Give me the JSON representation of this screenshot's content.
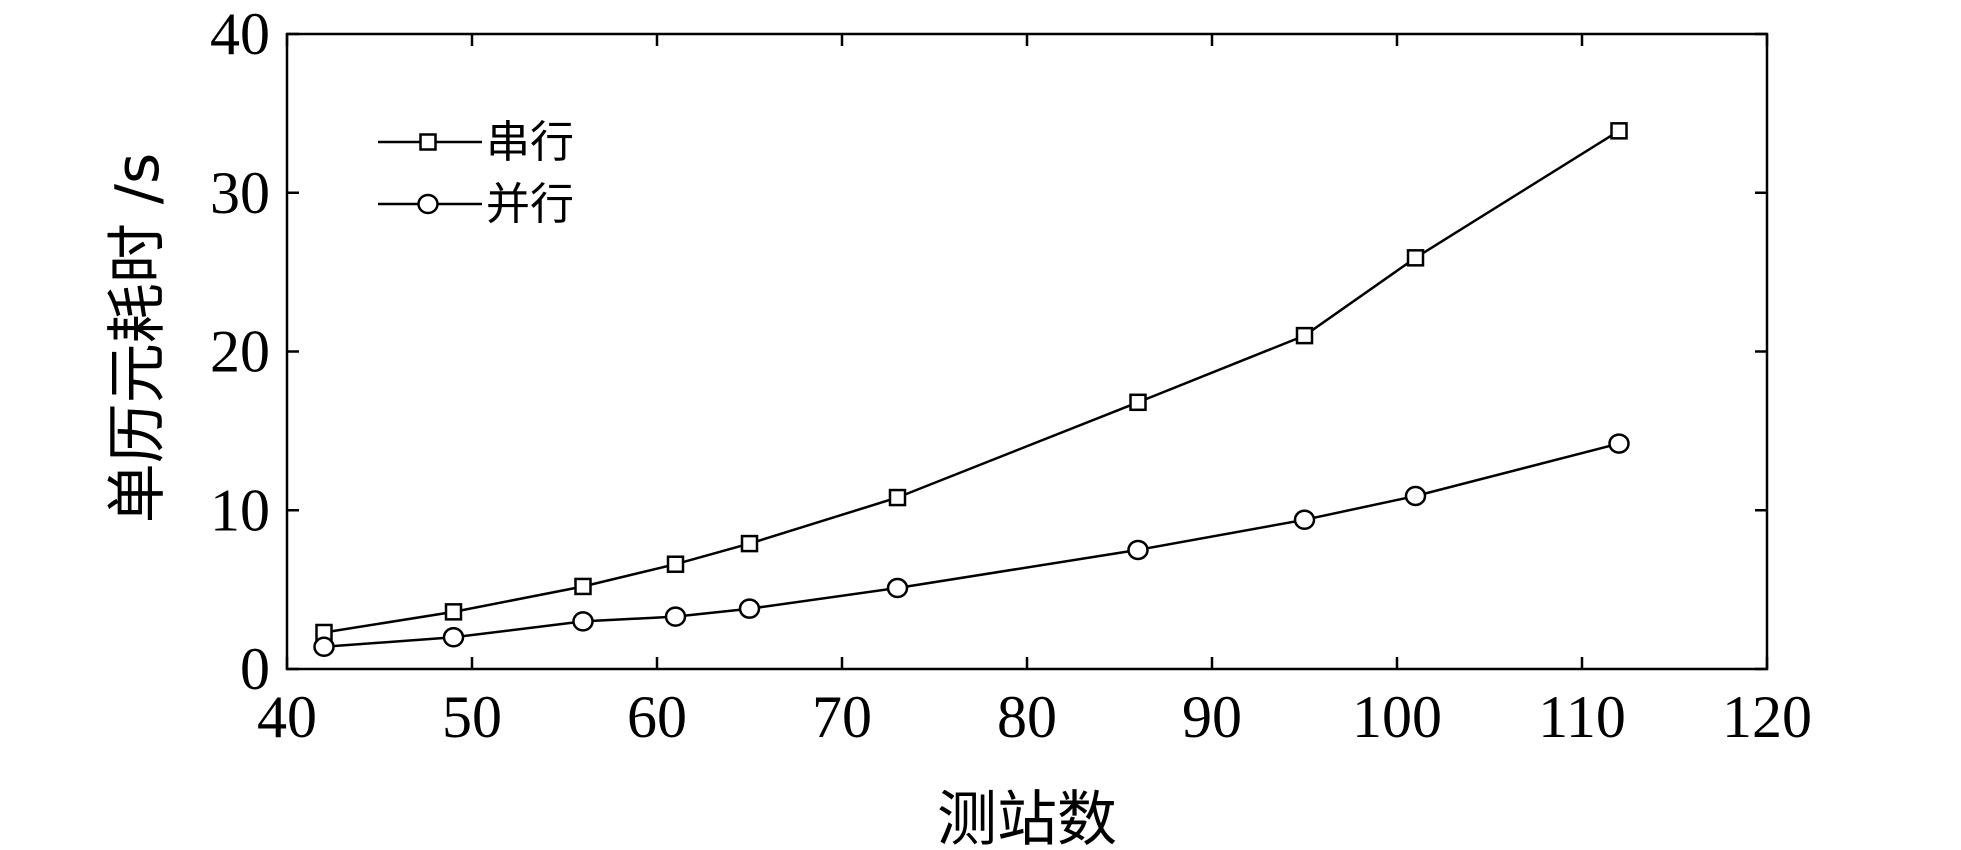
{
  "chart_data": {
    "type": "line",
    "title": "",
    "xlabel": "测站数",
    "ylabel": "单历元耗时 /s",
    "xlim": [
      40,
      120
    ],
    "ylim": [
      0,
      40
    ],
    "xticks": [
      40,
      50,
      60,
      70,
      80,
      90,
      100,
      110,
      120
    ],
    "yticks": [
      0,
      10,
      20,
      30,
      40
    ],
    "grid": false,
    "legend": {
      "position": "top-left"
    },
    "x": [
      42,
      49,
      56,
      61,
      65,
      73,
      86,
      95,
      101,
      112
    ],
    "series": [
      {
        "name": "串行",
        "marker": "square",
        "values": [
          2.3,
          3.6,
          5.2,
          6.6,
          7.9,
          10.8,
          16.8,
          21.0,
          25.9,
          33.9
        ]
      },
      {
        "name": "并行",
        "marker": "circle",
        "values": [
          1.4,
          2.0,
          3.0,
          3.3,
          3.8,
          5.1,
          7.5,
          9.4,
          10.9,
          14.2
        ]
      }
    ],
    "colors": {
      "line": "#000000",
      "background": "#ffffff"
    }
  }
}
